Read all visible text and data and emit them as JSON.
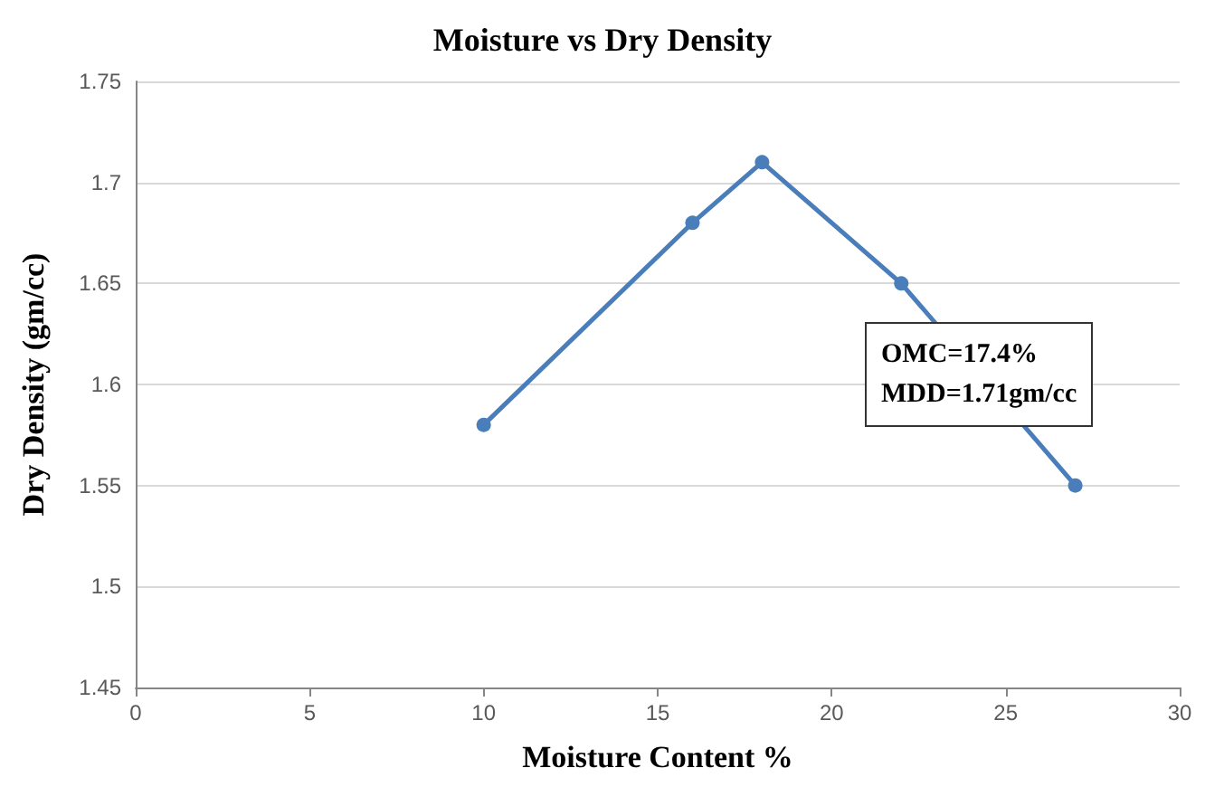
{
  "chart_data": {
    "type": "line",
    "title": "Moisture vs Dry Density",
    "xlabel": "Moisture Content %",
    "ylabel": "Dry Density (gm/cc)",
    "x": [
      10,
      16,
      18,
      22,
      27
    ],
    "series": [
      {
        "color": "#4a7ebb",
        "values": [
          1.58,
          1.68,
          1.71,
          1.65,
          1.55
        ]
      }
    ],
    "xlim": [
      0,
      30
    ],
    "xticks": [
      0,
      5,
      10,
      15,
      20,
      25,
      30
    ],
    "ylim": [
      1.45,
      1.75
    ],
    "yticks": [
      1.45,
      1.5,
      1.55,
      1.6,
      1.65,
      1.7,
      1.75
    ],
    "grid": "y",
    "marker": "circle",
    "line_style": "solid",
    "annotations": [
      "OMC=17.4%",
      "MDD=1.71gm/cc"
    ]
  }
}
